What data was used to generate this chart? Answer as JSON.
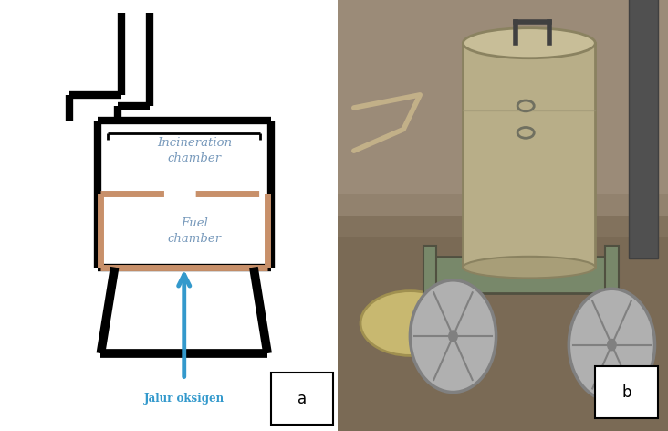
{
  "bg_color": "#ffffff",
  "line_color": "#000000",
  "fuel_color": "#c8906a",
  "arrow_color": "#3399cc",
  "jalur_color": "#3399cc",
  "inc_text_color": "#7799bb",
  "fuel_text_color": "#7799bb",
  "incineration_text": "Incineration\nchamber",
  "fuel_text": "Fuel\nchamber",
  "jalur_text": "Jalur oksigen",
  "label_a": "a",
  "label_b": "b",
  "lw_thick": 6,
  "lw_fuel": 3,
  "photo_colors": {
    "bg_upper": "#9b8570",
    "bg_lower": "#7a6550",
    "cylinder_body": "#b0a878",
    "cylinder_top": "#c0b888",
    "pole": "#606060",
    "frame": "#808060",
    "wheel_rim": "#909090",
    "wheel_bg": "#aaaaaa",
    "lid_on_ground": "#c0b880",
    "dirt_shadow": "#6a5540"
  }
}
